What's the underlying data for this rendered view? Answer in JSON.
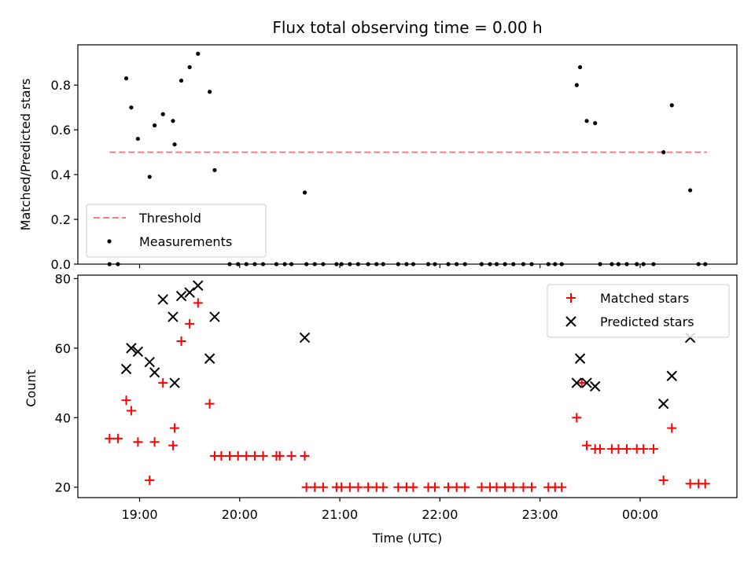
{
  "chart_data": [
    {
      "type": "scatter",
      "title": "Flux total observing time = 0.00 h",
      "xlabel": "",
      "ylabel": "Matched/Predicted stars",
      "xlim": [
        "18:23",
        "00:58"
      ],
      "ylim": [
        0,
        0.98
      ],
      "yticks": [
        "0.0",
        "0.2",
        "0.4",
        "0.6",
        "0.8"
      ],
      "grid": false,
      "legend_position": "lower-left",
      "threshold": {
        "name": "Threshold",
        "value": 0.5,
        "x_range": [
          "18:42",
          "00:40"
        ],
        "color": "#f08080"
      },
      "series": [
        {
          "name": "Measurements",
          "color": "#000000",
          "points": [
            [
              "18:42",
              0
            ],
            [
              "18:47",
              0
            ],
            [
              "18:52",
              0.83
            ],
            [
              "18:55",
              0.7
            ],
            [
              "18:59",
              0.56
            ],
            [
              "19:06",
              0.39
            ],
            [
              "19:09",
              0.62
            ],
            [
              "19:14",
              0.67
            ],
            [
              "19:20",
              0.64
            ],
            [
              "19:21",
              0.535
            ],
            [
              "19:25",
              0.82
            ],
            [
              "19:30",
              0.88
            ],
            [
              "19:35",
              0.94
            ],
            [
              "19:42",
              0.77
            ],
            [
              "19:45",
              0.42
            ],
            [
              "19:54",
              0
            ],
            [
              "19:59",
              0
            ],
            [
              "20:04",
              0
            ],
            [
              "20:09",
              0
            ],
            [
              "20:14",
              0
            ],
            [
              "20:22",
              0
            ],
            [
              "20:27",
              0
            ],
            [
              "20:31",
              0
            ],
            [
              "20:39",
              0.32
            ],
            [
              "20:40",
              0
            ],
            [
              "20:45",
              0
            ],
            [
              "20:50",
              0
            ],
            [
              "20:58",
              0
            ],
            [
              "21:01",
              0
            ],
            [
              "21:06",
              0
            ],
            [
              "21:11",
              0
            ],
            [
              "21:17",
              0
            ],
            [
              "21:22",
              0
            ],
            [
              "21:26",
              0
            ],
            [
              "21:35",
              0
            ],
            [
              "21:40",
              0
            ],
            [
              "21:44",
              0
            ],
            [
              "21:53",
              0
            ],
            [
              "21:57",
              0
            ],
            [
              "22:05",
              0
            ],
            [
              "22:10",
              0
            ],
            [
              "22:15",
              0
            ],
            [
              "22:25",
              0
            ],
            [
              "22:30",
              0
            ],
            [
              "22:34",
              0
            ],
            [
              "22:39",
              0
            ],
            [
              "22:44",
              0
            ],
            [
              "22:50",
              0
            ],
            [
              "22:55",
              0
            ],
            [
              "23:05",
              0
            ],
            [
              "23:09",
              0
            ],
            [
              "23:13",
              0
            ],
            [
              "23:22",
              0.8
            ],
            [
              "23:24",
              0.88
            ],
            [
              "23:28",
              0.64
            ],
            [
              "23:33",
              0.63
            ],
            [
              "23:36",
              0
            ],
            [
              "23:43",
              0
            ],
            [
              "23:47",
              0
            ],
            [
              "23:52",
              0
            ],
            [
              "23:58",
              0
            ],
            [
              "24:02",
              0
            ],
            [
              "24:08",
              0
            ],
            [
              "24:14",
              0.5
            ],
            [
              "24:19",
              0.71
            ],
            [
              "24:30",
              0.33
            ],
            [
              "24:35",
              0
            ],
            [
              "24:39",
              0
            ]
          ]
        }
      ]
    },
    {
      "type": "scatter",
      "title": "",
      "xlabel": "Time (UTC)",
      "ylabel": "Count",
      "xlim": [
        "18:23",
        "00:58"
      ],
      "ylim": [
        17,
        81
      ],
      "yticks": [
        "20",
        "40",
        "60",
        "80"
      ],
      "xticks": [
        "19:00",
        "20:00",
        "21:00",
        "22:00",
        "23:00",
        "00:00"
      ],
      "grid": false,
      "legend_position": "upper-right",
      "series": [
        {
          "name": "Matched stars",
          "marker": "plus",
          "color": "#ff0000",
          "points": [
            [
              "18:42",
              34
            ],
            [
              "18:47",
              34
            ],
            [
              "18:52",
              45
            ],
            [
              "18:55",
              42
            ],
            [
              "18:59",
              33
            ],
            [
              "19:06",
              22
            ],
            [
              "19:09",
              33
            ],
            [
              "19:14",
              50
            ],
            [
              "19:20",
              32
            ],
            [
              "19:21",
              37
            ],
            [
              "19:25",
              62
            ],
            [
              "19:30",
              67
            ],
            [
              "19:35",
              73
            ],
            [
              "19:42",
              44
            ],
            [
              "19:45",
              29
            ],
            [
              "19:49",
              29
            ],
            [
              "19:54",
              29
            ],
            [
              "19:59",
              29
            ],
            [
              "20:04",
              29
            ],
            [
              "20:09",
              29
            ],
            [
              "20:14",
              29
            ],
            [
              "20:22",
              29
            ],
            [
              "20:24",
              29
            ],
            [
              "20:31",
              29
            ],
            [
              "20:39",
              29
            ],
            [
              "20:40",
              20
            ],
            [
              "20:45",
              20
            ],
            [
              "20:50",
              20
            ],
            [
              "20:58",
              20
            ],
            [
              "21:01",
              20
            ],
            [
              "21:06",
              20
            ],
            [
              "21:11",
              20
            ],
            [
              "21:17",
              20
            ],
            [
              "21:22",
              20
            ],
            [
              "21:26",
              20
            ],
            [
              "21:35",
              20
            ],
            [
              "21:40",
              20
            ],
            [
              "21:44",
              20
            ],
            [
              "21:53",
              20
            ],
            [
              "21:57",
              20
            ],
            [
              "22:05",
              20
            ],
            [
              "22:10",
              20
            ],
            [
              "22:15",
              20
            ],
            [
              "22:25",
              20
            ],
            [
              "22:30",
              20
            ],
            [
              "22:34",
              20
            ],
            [
              "22:39",
              20
            ],
            [
              "22:44",
              20
            ],
            [
              "22:50",
              20
            ],
            [
              "22:55",
              20
            ],
            [
              "23:05",
              20
            ],
            [
              "23:09",
              20
            ],
            [
              "23:13",
              20
            ],
            [
              "23:22",
              40
            ],
            [
              "23:25",
              50
            ],
            [
              "23:28",
              32
            ],
            [
              "23:33",
              31
            ],
            [
              "23:36",
              31
            ],
            [
              "23:43",
              31
            ],
            [
              "23:47",
              31
            ],
            [
              "23:52",
              31
            ],
            [
              "23:58",
              31
            ],
            [
              "24:02",
              31
            ],
            [
              "24:08",
              31
            ],
            [
              "24:14",
              22
            ],
            [
              "24:19",
              37
            ],
            [
              "24:30",
              21
            ],
            [
              "24:35",
              21
            ],
            [
              "24:39",
              21
            ]
          ]
        },
        {
          "name": "Predicted stars",
          "marker": "x",
          "color": "#000000",
          "points": [
            [
              "18:52",
              54
            ],
            [
              "18:55",
              60
            ],
            [
              "18:59",
              59
            ],
            [
              "19:06",
              56
            ],
            [
              "19:09",
              53
            ],
            [
              "19:14",
              74
            ],
            [
              "19:20",
              69
            ],
            [
              "19:21",
              50
            ],
            [
              "19:25",
              75
            ],
            [
              "19:30",
              76
            ],
            [
              "19:35",
              78
            ],
            [
              "19:42",
              57
            ],
            [
              "19:45",
              69
            ],
            [
              "20:39",
              63
            ],
            [
              "23:22",
              50
            ],
            [
              "23:24",
              57
            ],
            [
              "23:28",
              50
            ],
            [
              "23:33",
              49
            ],
            [
              "24:14",
              44
            ],
            [
              "24:19",
              52
            ],
            [
              "24:30",
              63
            ]
          ]
        }
      ]
    }
  ]
}
